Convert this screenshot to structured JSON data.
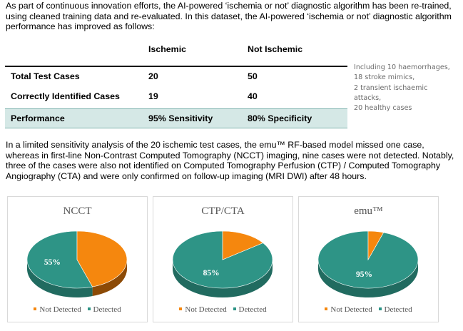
{
  "intro": "As part of continuous innovation efforts, the AI-powered ‘ischemia or not’ diagnostic algorithm has been re-trained, using cleaned training data and re-evaluated. In this dataset, the AI-powered ‘ischemia or not’ diagnostic algorithm performance has improved as follows:",
  "table": {
    "headers": [
      "Ischemic",
      "Not Ischemic"
    ],
    "rows": [
      {
        "label": "Total Test Cases",
        "ischemic": "20",
        "not_ischemic": "50"
      },
      {
        "label": "Correctly Identified Cases",
        "ischemic": "19",
        "not_ischemic": "40"
      },
      {
        "label": "Performance",
        "ischemic": "95% Sensitivity",
        "not_ischemic": "80% Specificity"
      }
    ]
  },
  "side_note": [
    "Including 10 haemorrhages,",
    "18 stroke mimics,",
    "2 transient ischaemic",
    "attacks,",
    "20 healthy cases"
  ],
  "analysis": "In a limited sensitivity analysis of the 20 ischemic test cases, the emu™ RF-based model missed one case, whereas in first-line Non-Contrast Computed Tomography (NCCT) imaging, nine cases were not detected. Notably, three of the cases were also not identified on Computed Tomography Perfusion (CTP) / Computed Tomography Angiography (CTA) and were only confirmed on follow-up imaging (MRI DWI) after 48 hours.",
  "colors": {
    "detected": "#2e9486",
    "detected_side": "#216b60",
    "not_detected": "#f5870e",
    "not_detected_side": "#8c4a06"
  },
  "chart_data": [
    {
      "type": "pie",
      "title": "NCCT",
      "labels": [
        "Not Detected",
        "Detected"
      ],
      "values": [
        45,
        55
      ],
      "data_label": "55%"
    },
    {
      "type": "pie",
      "title": "CTP/CTA",
      "labels": [
        "Not Detected",
        "Detected"
      ],
      "values": [
        15,
        85
      ],
      "data_label": "85%"
    },
    {
      "type": "pie",
      "title": "emu™",
      "labels": [
        "Not Detected",
        "Detected"
      ],
      "values": [
        5,
        95
      ],
      "data_label": "95%"
    }
  ]
}
